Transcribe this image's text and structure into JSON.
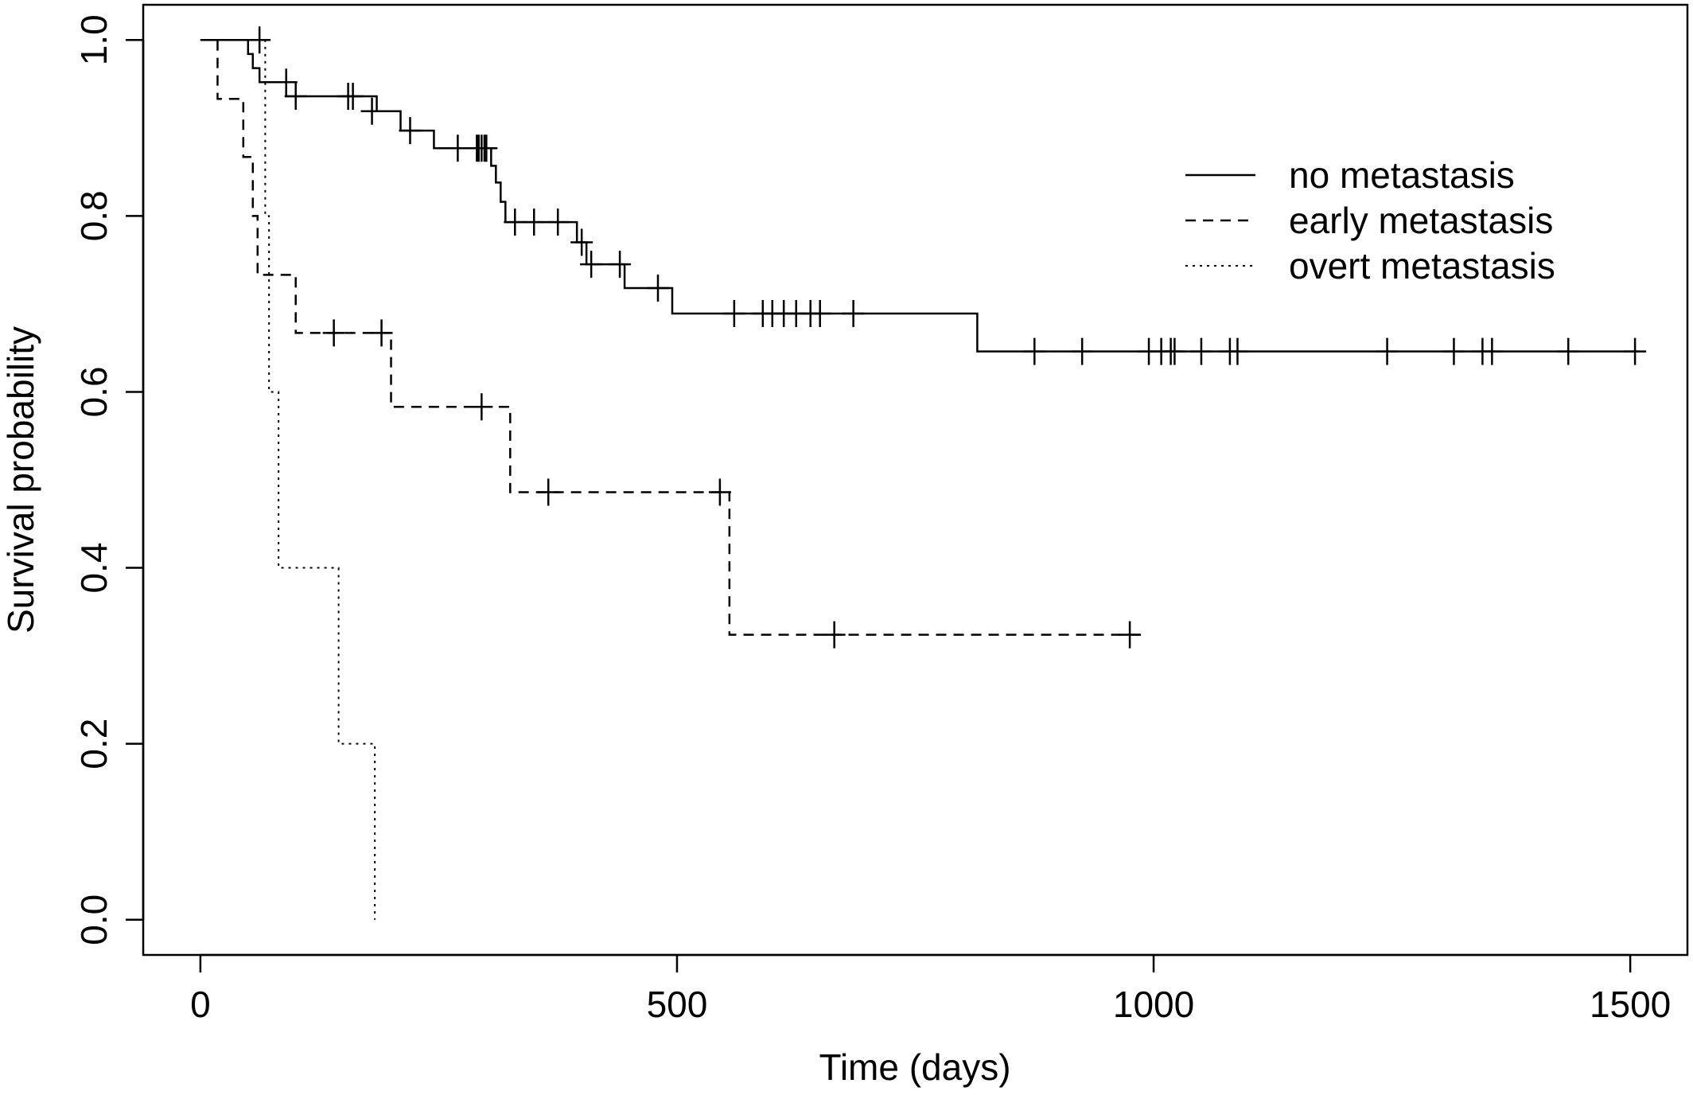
{
  "chart_data": {
    "type": "line",
    "subtype": "kaplan-meier step survival curves",
    "title": "",
    "xlabel": "Time (days)",
    "ylabel": "Survival probability",
    "xlim": [
      -60,
      1560
    ],
    "ylim": [
      -0.04,
      1.04
    ],
    "xticks": [
      0,
      500,
      1000,
      1500
    ],
    "xtick_labels": [
      "0",
      "500",
      "1000",
      "1500"
    ],
    "yticks": [
      0.0,
      0.2,
      0.4,
      0.6,
      0.8,
      1.0
    ],
    "ytick_labels": [
      "0.0",
      "0.2",
      "0.4",
      "0.6",
      "0.8",
      "1.0"
    ],
    "grid": false,
    "legend_position": "top-right",
    "series": [
      {
        "name": "no metastasis",
        "line_style": "solid",
        "color": "#000000",
        "steps": [
          [
            0,
            1.0
          ],
          [
            50,
            0.984
          ],
          [
            55,
            0.968
          ],
          [
            62,
            0.952
          ],
          [
            90,
            0.936
          ],
          [
            185,
            0.919
          ],
          [
            210,
            0.897
          ],
          [
            245,
            0.877
          ],
          [
            305,
            0.857
          ],
          [
            310,
            0.838
          ],
          [
            315,
            0.816
          ],
          [
            320,
            0.793
          ],
          [
            395,
            0.77
          ],
          [
            405,
            0.745
          ],
          [
            445,
            0.718
          ],
          [
            495,
            0.689
          ],
          [
            815,
            0.646
          ],
          [
            1510,
            0.646
          ]
        ],
        "censored": [
          [
            62,
            1.0
          ],
          [
            90,
            0.952
          ],
          [
            100,
            0.936
          ],
          [
            155,
            0.936
          ],
          [
            160,
            0.936
          ],
          [
            180,
            0.919
          ],
          [
            220,
            0.897
          ],
          [
            270,
            0.877
          ],
          [
            290,
            0.877
          ],
          [
            292,
            0.877
          ],
          [
            295,
            0.877
          ],
          [
            298,
            0.877
          ],
          [
            300,
            0.877
          ],
          [
            330,
            0.793
          ],
          [
            350,
            0.793
          ],
          [
            375,
            0.793
          ],
          [
            400,
            0.77
          ],
          [
            410,
            0.745
          ],
          [
            440,
            0.745
          ],
          [
            480,
            0.718
          ],
          [
            560,
            0.689
          ],
          [
            590,
            0.689
          ],
          [
            600,
            0.689
          ],
          [
            612,
            0.689
          ],
          [
            625,
            0.689
          ],
          [
            640,
            0.689
          ],
          [
            650,
            0.689
          ],
          [
            685,
            0.689
          ],
          [
            875,
            0.646
          ],
          [
            925,
            0.646
          ],
          [
            995,
            0.646
          ],
          [
            1008,
            0.646
          ],
          [
            1018,
            0.646
          ],
          [
            1022,
            0.646
          ],
          [
            1050,
            0.646
          ],
          [
            1080,
            0.646
          ],
          [
            1088,
            0.646
          ],
          [
            1245,
            0.646
          ],
          [
            1315,
            0.646
          ],
          [
            1345,
            0.646
          ],
          [
            1355,
            0.646
          ],
          [
            1435,
            0.646
          ],
          [
            1505,
            0.646
          ]
        ]
      },
      {
        "name": "early metastasis",
        "line_style": "dashed",
        "color": "#000000",
        "steps": [
          [
            0,
            1.0
          ],
          [
            18,
            0.933
          ],
          [
            45,
            0.867
          ],
          [
            55,
            0.8
          ],
          [
            60,
            0.733
          ],
          [
            100,
            0.667
          ],
          [
            200,
            0.583
          ],
          [
            325,
            0.486
          ],
          [
            555,
            0.324
          ],
          [
            985,
            0.324
          ]
        ],
        "censored": [
          [
            140,
            0.667
          ],
          [
            190,
            0.667
          ],
          [
            295,
            0.583
          ],
          [
            365,
            0.486
          ],
          [
            545,
            0.486
          ],
          [
            665,
            0.324
          ],
          [
            975,
            0.324
          ]
        ]
      },
      {
        "name": "overt metastasis",
        "line_style": "dotted",
        "color": "#000000",
        "steps": [
          [
            0,
            1.0
          ],
          [
            68,
            0.8
          ],
          [
            72,
            0.6
          ],
          [
            82,
            0.4
          ],
          [
            145,
            0.2
          ],
          [
            183,
            0.0
          ]
        ],
        "censored": []
      }
    ]
  }
}
